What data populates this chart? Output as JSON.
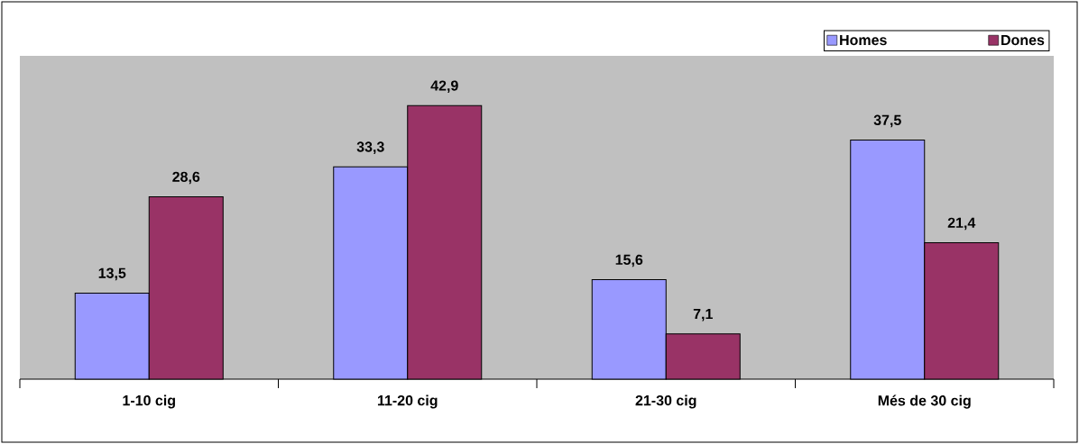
{
  "chart_data": {
    "type": "bar",
    "categories": [
      "1-10 cig",
      "11-20 cig",
      "21-30 cig",
      "Més de 30 cig"
    ],
    "series": [
      {
        "name": "Homes",
        "color": "#9999ff",
        "values": [
          13.5,
          33.3,
          15.6,
          37.5
        ],
        "value_labels": [
          "13,5",
          "33,3",
          "15,6",
          "37,5"
        ]
      },
      {
        "name": "Dones",
        "color": "#993366",
        "values": [
          28.6,
          42.9,
          7.1,
          21.4
        ],
        "value_labels": [
          "28,6",
          "42,9",
          "7,1",
          "21,4"
        ]
      }
    ],
    "ylim": [
      0,
      50.7
    ],
    "legend": "top right"
  }
}
